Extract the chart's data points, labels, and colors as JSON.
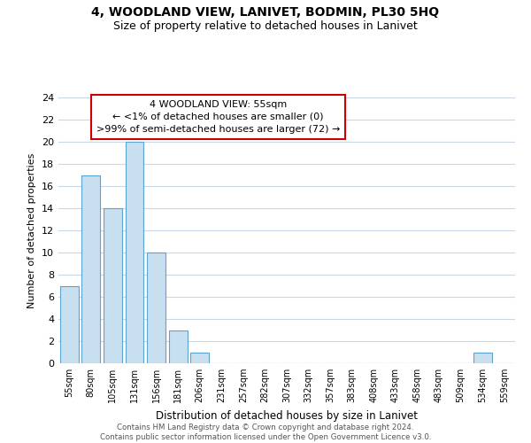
{
  "title": "4, WOODLAND VIEW, LANIVET, BODMIN, PL30 5HQ",
  "subtitle": "Size of property relative to detached houses in Lanivet",
  "xlabel": "Distribution of detached houses by size in Lanivet",
  "ylabel": "Number of detached properties",
  "categories": [
    "55sqm",
    "80sqm",
    "105sqm",
    "131sqm",
    "156sqm",
    "181sqm",
    "206sqm",
    "231sqm",
    "257sqm",
    "282sqm",
    "307sqm",
    "332sqm",
    "357sqm",
    "383sqm",
    "408sqm",
    "433sqm",
    "458sqm",
    "483sqm",
    "509sqm",
    "534sqm",
    "559sqm"
  ],
  "values": [
    7,
    17,
    14,
    20,
    10,
    3,
    1,
    0,
    0,
    0,
    0,
    0,
    0,
    0,
    0,
    0,
    0,
    0,
    0,
    1,
    0
  ],
  "bar_color": "#c8dff0",
  "bar_edge_color": "#5ba3d0",
  "ylim": [
    0,
    24
  ],
  "yticks": [
    0,
    2,
    4,
    6,
    8,
    10,
    12,
    14,
    16,
    18,
    20,
    22,
    24
  ],
  "annotation_title": "4 WOODLAND VIEW: 55sqm",
  "annotation_line1": "← <1% of detached houses are smaller (0)",
  "annotation_line2": ">99% of semi-detached houses are larger (72) →",
  "annotation_box_color": "#ffffff",
  "annotation_box_edge": "#cc0000",
  "footer_line1": "Contains HM Land Registry data © Crown copyright and database right 2024.",
  "footer_line2": "Contains public sector information licensed under the Open Government Licence v3.0.",
  "background_color": "#ffffff",
  "grid_color": "#c8d8e8",
  "title_fontsize": 10,
  "subtitle_fontsize": 9
}
